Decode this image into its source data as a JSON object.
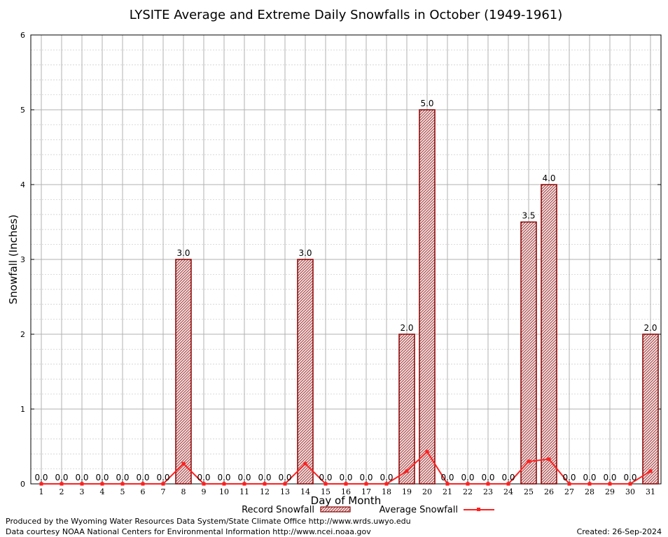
{
  "chart_data": {
    "type": "bar",
    "title": "LYSITE Average and Extreme Daily Snowfalls in October (1949-1961)",
    "xlabel": "Day of Month",
    "ylabel": "Snowfall (Inches)",
    "ylim": [
      0,
      6
    ],
    "yticks": [
      "0",
      "1",
      "2",
      "3",
      "4",
      "5",
      "6"
    ],
    "categories": [
      "1",
      "2",
      "3",
      "4",
      "5",
      "6",
      "7",
      "8",
      "9",
      "10",
      "11",
      "12",
      "13",
      "14",
      "15",
      "16",
      "17",
      "18",
      "19",
      "20",
      "21",
      "22",
      "23",
      "24",
      "25",
      "26",
      "27",
      "28",
      "29",
      "30",
      "31"
    ],
    "series": [
      {
        "name": "Record Snowfall",
        "type": "bar",
        "values": [
          0,
          0,
          0,
          0,
          0,
          0,
          0,
          3.0,
          0,
          0,
          0,
          0,
          0,
          3.0,
          0,
          0,
          0,
          0,
          2.0,
          5.0,
          0,
          0,
          0,
          0,
          3.5,
          4.0,
          0,
          0,
          0,
          0,
          2.0
        ],
        "labels": [
          "0.0",
          "0.0",
          "0.0",
          "0.0",
          "0.0",
          "0.0",
          "0.0",
          "3.0",
          "0.0",
          "0.0",
          "0.0",
          "0.0",
          "0.0",
          "3.0",
          "0.0",
          "0.0",
          "0.0",
          "0.0",
          "2.0",
          "5.0",
          "0.0",
          "0.0",
          "0.0",
          "0.0",
          "3.5",
          "4.0",
          "0.0",
          "0.0",
          "0.0",
          "0.0",
          "2.0"
        ]
      },
      {
        "name": "Average Snowfall",
        "type": "line",
        "values": [
          0,
          0,
          0,
          0,
          0,
          0,
          0,
          0.27,
          0,
          0,
          0,
          0,
          0,
          0.27,
          0,
          0,
          0,
          0,
          0.17,
          0.43,
          0,
          0,
          0,
          0,
          0.3,
          0.33,
          0,
          0,
          0,
          0,
          0.17
        ]
      }
    ],
    "grid": true,
    "legend_position": "bottom",
    "colors": {
      "bar_edge": "#8b0000",
      "bar_fill": "#e8c8c8",
      "line": "#ff2020",
      "grid": "#b0b0b0",
      "grid_minor": "#d0d0d0"
    }
  },
  "footer": {
    "credit_line1": "Produced by the Wyoming Water Resources Data System/State Climate Office http://www.wrds.uwyo.edu",
    "credit_line2": "Data courtesy NOAA National Centers for Environmental Information http://www.ncei.noaa.gov",
    "created": "Created:  26-Sep-2024"
  }
}
